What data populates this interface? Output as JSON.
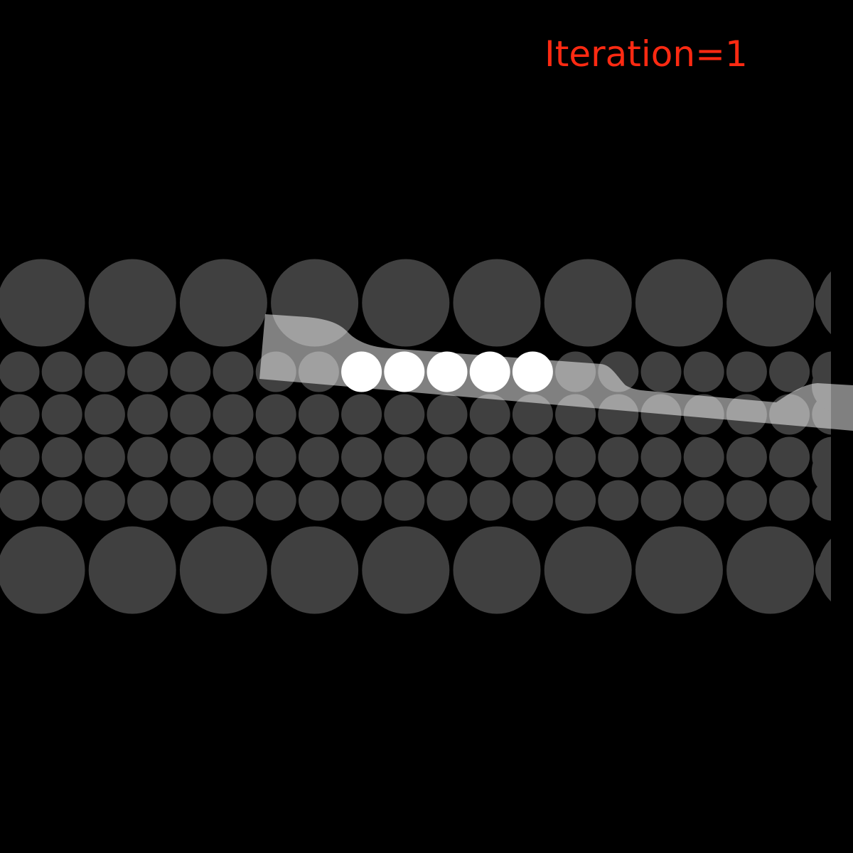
{
  "iteration_text": "Iteration=1",
  "colors": {
    "background": "#000000",
    "dot": "#404040",
    "highlight_dot": "#ffffff",
    "overlay_band": "#ffffff",
    "label": "#ff2a12"
  },
  "lattice": {
    "rows": [
      {
        "kind": "large",
        "count": 10
      },
      {
        "kind": "small",
        "count": 20
      },
      {
        "kind": "small",
        "count": 20
      },
      {
        "kind": "small",
        "count": 20
      },
      {
        "kind": "small",
        "count": 20
      },
      {
        "kind": "large",
        "count": 10
      }
    ],
    "highlighted_row": 2,
    "highlighted_columns": [
      9,
      10,
      11,
      12,
      13
    ]
  }
}
